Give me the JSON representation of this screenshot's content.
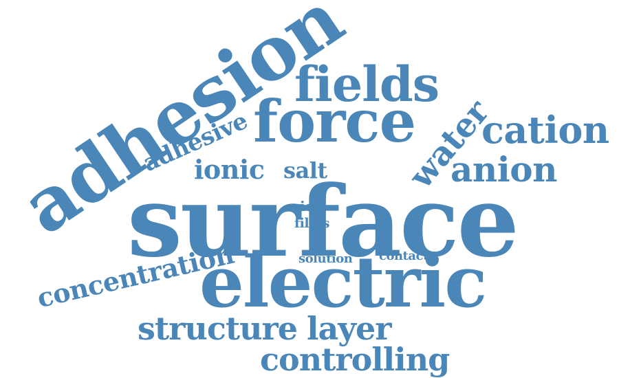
{
  "word_cloud": {
    "color": "#4a86b8",
    "background": "#ffffff",
    "words": {
      "surface": "surface",
      "adhesion": "adhesion",
      "electric": "electric",
      "force": "force",
      "fields": "fields",
      "cation": "cation",
      "anion": "anion",
      "water": "water",
      "adhesive": "adhesive",
      "ionic": "ionic",
      "salt": "salt",
      "ion": "ion",
      "films": "films",
      "concentration": "concentration",
      "solution": "solution",
      "contact": "contact",
      "structure": "structure",
      "layer": "layer",
      "controlling": "controlling"
    }
  }
}
